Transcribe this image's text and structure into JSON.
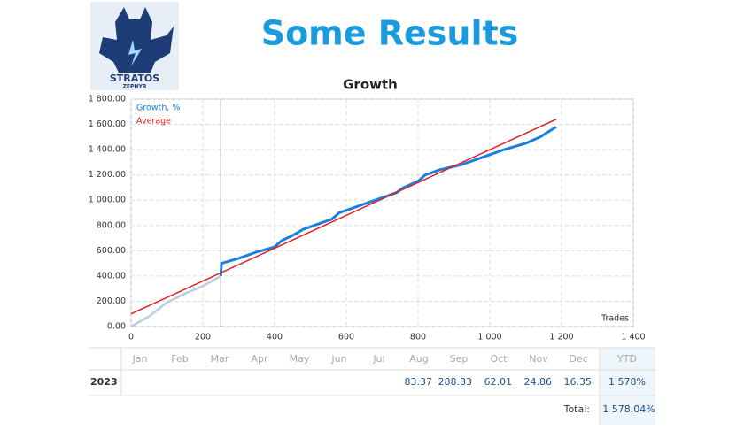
{
  "logo": {
    "line1": "STRATOS",
    "line2": "ZEPHYR"
  },
  "title": "Some Results",
  "chart_data": {
    "type": "line",
    "title": "Growth",
    "x_label": "Trades",
    "xlim": [
      0,
      1400
    ],
    "xticks": [
      0,
      200,
      400,
      600,
      800,
      {
        "value": 1000,
        "label": "1 000"
      },
      {
        "value": 1200,
        "label": "1 200"
      },
      {
        "value": 1400,
        "label": "1 400"
      }
    ],
    "ylim": [
      0,
      1800
    ],
    "yticks": [
      {
        "value": 0,
        "label": "0.00"
      },
      {
        "value": 200,
        "label": "200.00"
      },
      {
        "value": 400,
        "label": "400.00"
      },
      {
        "value": 600,
        "label": "600.00"
      },
      {
        "value": 800,
        "label": "800.00"
      },
      {
        "value": 1000,
        "label": "1 000.00"
      },
      {
        "value": 1200,
        "label": "1 200.00"
      },
      {
        "value": 1400,
        "label": "1 400.00"
      },
      {
        "value": 1600,
        "label": "1 600.00"
      },
      {
        "value": 1800,
        "label": "1 800.00"
      }
    ],
    "grid": true,
    "vline": 250,
    "early_color": "#b8cde0",
    "series": [
      {
        "name": "Growth, %",
        "color": "#1a7fe0",
        "x": [
          0,
          50,
          100,
          150,
          200,
          250,
          252,
          300,
          350,
          400,
          420,
          450,
          480,
          520,
          560,
          580,
          620,
          660,
          700,
          740,
          760,
          800,
          820,
          860,
          920,
          960,
          1000,
          1040,
          1100,
          1140,
          1185
        ],
        "values": [
          0,
          80,
          190,
          260,
          320,
          400,
          500,
          540,
          590,
          630,
          680,
          720,
          770,
          810,
          850,
          900,
          940,
          980,
          1020,
          1060,
          1100,
          1150,
          1200,
          1240,
          1280,
          1320,
          1360,
          1400,
          1450,
          1500,
          1580
        ]
      },
      {
        "name": "Average",
        "color": "#e02020",
        "x": [
          0,
          1185
        ],
        "values": [
          100,
          1640
        ]
      }
    ]
  },
  "table": {
    "header": [
      "Jan",
      "Feb",
      "Mar",
      "Apr",
      "May",
      "Jun",
      "Jul",
      "Aug",
      "Sep",
      "Oct",
      "Nov",
      "Dec",
      "YTD"
    ],
    "rows": [
      {
        "year": "2023",
        "cells": [
          null,
          null,
          null,
          null,
          null,
          null,
          null,
          "83.37",
          "288.83",
          "62.01",
          "24.86",
          "16.35",
          "1 578%"
        ]
      }
    ],
    "total_label": "Total:",
    "total_value": "1 578.04%"
  }
}
